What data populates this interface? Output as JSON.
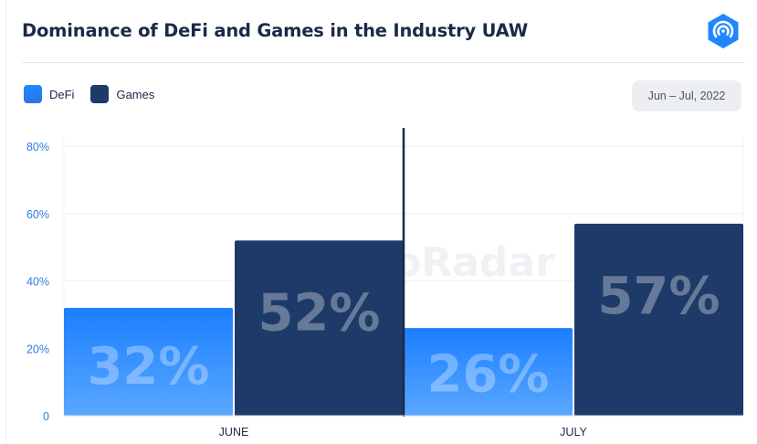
{
  "title": "Dominance of DeFi and Games in the Industry UAW",
  "logo_icon": "dappradar-logo-icon",
  "date_range": "Jun – Jul, 2022",
  "watermark": "DappRadar",
  "colors": {
    "defi": "#1f86ff",
    "games": "#1e3a68",
    "text_dark": "#1b2a48",
    "axis_text": "#2f7de1"
  },
  "chart_data": {
    "type": "bar",
    "title": "Dominance of DeFi and Games in the Industry UAW",
    "categories": [
      "JUNE",
      "JULY"
    ],
    "series": [
      {
        "name": "DeFi",
        "values": [
          32,
          26
        ],
        "labels": [
          "32%",
          "26%"
        ]
      },
      {
        "name": "Games",
        "values": [
          52,
          57
        ],
        "labels": [
          "52%",
          "57%"
        ]
      }
    ],
    "ylim": [
      0,
      80
    ],
    "yticks": [
      0,
      20,
      40,
      60,
      80
    ],
    "ytick_labels": [
      "0",
      "20%",
      "40%",
      "60%",
      "80%"
    ],
    "grid": true,
    "legend": "top-left"
  }
}
